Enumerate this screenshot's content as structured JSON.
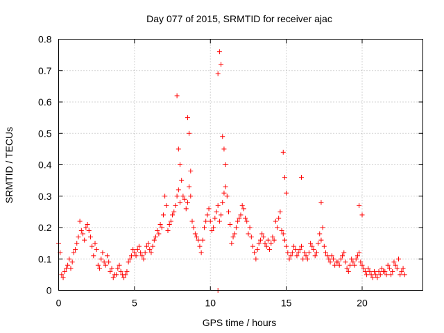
{
  "chart_data": {
    "type": "scatter",
    "title": "Day 077 of 2015, SRMTID for receiver ajac",
    "xlabel": "GPS time / hours",
    "ylabel": "SRMTID / TECUs",
    "xlim": [
      0,
      24
    ],
    "ylim": [
      0,
      0.8
    ],
    "x_ticks": [
      "0",
      "5",
      "10",
      "15",
      "20"
    ],
    "y_ticks": [
      "0",
      "0.1",
      "0.2",
      "0.3",
      "0.4",
      "0.5",
      "0.6",
      "0.7",
      "0.8"
    ],
    "grid": true,
    "marker": "+",
    "color": "#ff0000",
    "series": [
      {
        "name": "SRMTID",
        "x": [
          0.0,
          0.2,
          0.4,
          0.6,
          0.8,
          1.0,
          1.2,
          1.4,
          1.6,
          1.8,
          2.0,
          2.2,
          2.4,
          2.6,
          2.8,
          3.0,
          3.2,
          3.4,
          3.6,
          3.8,
          4.0,
          4.2,
          4.4,
          4.6,
          4.8,
          5.0,
          5.2,
          5.4,
          5.6,
          5.8,
          6.0,
          6.2,
          6.4,
          6.6,
          6.8,
          7.0,
          7.2,
          7.4,
          7.6,
          7.8,
          8.0,
          8.2,
          8.4,
          8.6,
          8.8,
          9.0,
          9.2,
          9.4,
          9.6,
          9.8,
          10.0,
          10.2,
          10.4,
          10.6,
          10.8,
          11.0,
          11.2,
          11.4,
          11.6,
          11.8,
          12.0,
          12.2,
          12.4,
          12.6,
          12.8,
          13.0,
          13.2,
          13.4,
          13.6,
          13.8,
          14.0,
          14.2,
          14.4,
          14.6,
          14.8,
          15.0,
          15.2,
          15.4,
          15.6,
          15.8,
          16.0,
          16.2,
          16.4,
          16.6,
          16.8,
          17.0,
          17.2,
          17.4,
          17.6,
          17.8,
          18.0,
          18.2,
          18.4,
          18.6,
          18.8,
          19.0,
          19.2,
          19.4,
          19.6,
          19.8,
          20.0,
          20.2,
          20.4,
          20.6,
          20.8,
          21.0,
          21.2,
          21.4,
          21.6,
          21.8,
          22.0,
          22.2,
          22.4,
          22.6,
          22.8,
          0.1,
          0.3,
          0.5,
          0.7,
          0.9,
          1.1,
          1.3,
          1.5,
          1.7,
          1.9,
          2.1,
          2.3,
          2.5,
          2.7,
          2.9,
          3.1,
          3.3,
          3.5,
          3.7,
          3.9,
          4.1,
          4.3,
          4.5,
          4.7,
          4.9,
          5.1,
          5.3,
          5.5,
          5.7,
          5.9,
          6.1,
          6.3,
          6.5,
          6.7,
          6.9,
          7.1,
          7.3,
          7.5,
          7.7,
          7.9,
          8.1,
          8.3,
          8.5,
          8.7,
          8.9,
          9.1,
          9.3,
          9.5,
          9.7,
          9.9,
          10.1,
          10.3,
          10.5,
          10.7,
          10.9,
          11.1,
          11.3,
          11.5,
          11.7,
          11.9,
          12.1,
          12.3,
          12.5,
          12.7,
          12.9,
          13.1,
          13.3,
          13.5,
          13.7,
          13.9,
          14.1,
          14.3,
          14.5,
          14.7,
          14.9,
          15.1,
          15.3,
          15.5,
          15.7,
          15.9,
          16.1,
          16.3,
          16.5,
          16.7,
          16.9,
          17.1,
          17.3,
          17.5,
          17.7,
          17.9,
          18.1,
          18.3,
          18.5,
          18.7,
          18.9,
          19.1,
          19.3,
          19.5,
          19.7,
          19.9,
          20.1,
          20.3,
          20.5,
          20.7,
          20.9,
          21.1,
          21.3,
          21.5,
          21.7,
          21.9,
          22.1,
          22.3,
          22.5,
          22.7,
          7.8,
          7.9,
          8.0,
          8.5,
          8.6,
          8.7,
          10.5,
          10.6,
          10.7,
          10.8,
          10.9,
          11.0,
          14.8,
          14.9,
          15.0,
          16.0,
          17.3,
          19.8,
          20.0,
          10.5
        ],
        "y": [
          0.15,
          0.05,
          0.06,
          0.08,
          0.07,
          0.12,
          0.15,
          0.22,
          0.18,
          0.2,
          0.19,
          0.14,
          0.15,
          0.08,
          0.1,
          0.09,
          0.11,
          0.06,
          0.04,
          0.05,
          0.08,
          0.05,
          0.05,
          0.09,
          0.11,
          0.12,
          0.13,
          0.12,
          0.1,
          0.14,
          0.13,
          0.14,
          0.17,
          0.18,
          0.2,
          0.3,
          0.19,
          0.22,
          0.25,
          0.3,
          0.28,
          0.3,
          0.26,
          0.33,
          0.22,
          0.18,
          0.16,
          0.12,
          0.2,
          0.24,
          0.22,
          0.2,
          0.25,
          0.22,
          0.28,
          0.33,
          0.25,
          0.15,
          0.18,
          0.22,
          0.24,
          0.26,
          0.22,
          0.2,
          0.14,
          0.1,
          0.15,
          0.18,
          0.15,
          0.16,
          0.15,
          0.16,
          0.2,
          0.25,
          0.18,
          0.14,
          0.1,
          0.12,
          0.13,
          0.12,
          0.14,
          0.12,
          0.1,
          0.15,
          0.13,
          0.12,
          0.18,
          0.2,
          0.12,
          0.1,
          0.11,
          0.08,
          0.09,
          0.1,
          0.12,
          0.07,
          0.08,
          0.09,
          0.1,
          0.12,
          0.08,
          0.06,
          0.07,
          0.05,
          0.06,
          0.04,
          0.05,
          0.06,
          0.05,
          0.07,
          0.06,
          0.08,
          0.1,
          0.06,
          0.05,
          0.12,
          0.04,
          0.07,
          0.1,
          0.09,
          0.13,
          0.17,
          0.19,
          0.16,
          0.21,
          0.17,
          0.11,
          0.13,
          0.07,
          0.12,
          0.08,
          0.09,
          0.07,
          0.05,
          0.07,
          0.06,
          0.04,
          0.06,
          0.1,
          0.13,
          0.11,
          0.14,
          0.11,
          0.12,
          0.15,
          0.12,
          0.16,
          0.19,
          0.21,
          0.24,
          0.27,
          0.21,
          0.24,
          0.27,
          0.32,
          0.35,
          0.29,
          0.28,
          0.3,
          0.2,
          0.17,
          0.14,
          0.16,
          0.22,
          0.26,
          0.19,
          0.23,
          0.27,
          0.24,
          0.31,
          0.3,
          0.21,
          0.17,
          0.2,
          0.23,
          0.27,
          0.23,
          0.18,
          0.17,
          0.12,
          0.13,
          0.16,
          0.17,
          0.14,
          0.13,
          0.17,
          0.22,
          0.23,
          0.19,
          0.16,
          0.12,
          0.11,
          0.14,
          0.11,
          0.13,
          0.1,
          0.11,
          0.12,
          0.14,
          0.11,
          0.15,
          0.16,
          0.14,
          0.11,
          0.09,
          0.1,
          0.09,
          0.08,
          0.11,
          0.09,
          0.06,
          0.1,
          0.08,
          0.11,
          0.09,
          0.07,
          0.05,
          0.06,
          0.04,
          0.05,
          0.06,
          0.07,
          0.06,
          0.08,
          0.05,
          0.09,
          0.07,
          0.05,
          0.07,
          0.62,
          0.45,
          0.4,
          0.55,
          0.5,
          0.38,
          0.69,
          0.76,
          0.72,
          0.49,
          0.45,
          0.4,
          0.44,
          0.36,
          0.31,
          0.36,
          0.28,
          0.27,
          0.24,
          0.0
        ]
      }
    ]
  }
}
